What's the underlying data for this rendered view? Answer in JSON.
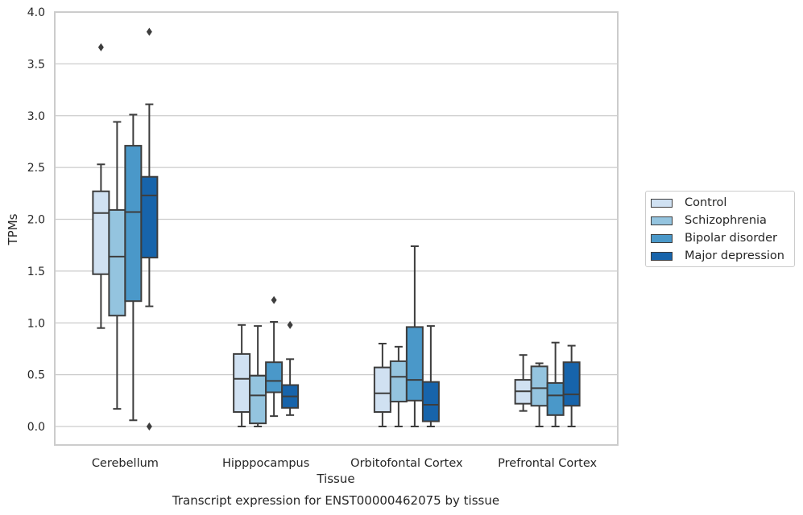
{
  "chart_data": {
    "type": "box",
    "title": "Transcript expression for ENST00000462075 by tissue",
    "xlabel": "Tissue",
    "ylabel": "TPMs",
    "ylim": [
      -0.18,
      4.0
    ],
    "yticks": [
      0.0,
      0.5,
      1.0,
      1.5,
      2.0,
      2.5,
      3.0,
      3.5,
      4.0
    ],
    "ytick_labels": [
      "0.0",
      "0.5",
      "1.0",
      "1.5",
      "2.0",
      "2.5",
      "3.0",
      "3.5",
      "4.0"
    ],
    "categories": [
      "Cerebellum",
      "Hipppocampus",
      "Orbitofontal Cortex",
      "Prefrontal Cortex"
    ],
    "grid": "horizontal",
    "legend_position": "outside right",
    "series": [
      {
        "name": "Control",
        "color": "#d0e1f2",
        "boxes": [
          {
            "whislo": 0.95,
            "q1": 1.47,
            "med": 2.06,
            "q3": 2.27,
            "whishi": 2.53,
            "fliers": [
              3.66
            ]
          },
          {
            "whislo": 0.0,
            "q1": 0.14,
            "med": 0.46,
            "q3": 0.7,
            "whishi": 0.98,
            "fliers": []
          },
          {
            "whislo": 0.0,
            "q1": 0.14,
            "med": 0.32,
            "q3": 0.57,
            "whishi": 0.8,
            "fliers": []
          },
          {
            "whislo": 0.15,
            "q1": 0.22,
            "med": 0.34,
            "q3": 0.45,
            "whishi": 0.69,
            "fliers": []
          }
        ]
      },
      {
        "name": "Schizophrenia",
        "color": "#94c4df",
        "boxes": [
          {
            "whislo": 0.17,
            "q1": 1.07,
            "med": 1.64,
            "q3": 2.09,
            "whishi": 2.94,
            "fliers": []
          },
          {
            "whislo": 0.0,
            "q1": 0.03,
            "med": 0.3,
            "q3": 0.49,
            "whishi": 0.97,
            "fliers": []
          },
          {
            "whislo": 0.0,
            "q1": 0.24,
            "med": 0.48,
            "q3": 0.63,
            "whishi": 0.77,
            "fliers": []
          },
          {
            "whislo": 0.0,
            "q1": 0.2,
            "med": 0.37,
            "q3": 0.58,
            "whishi": 0.61,
            "fliers": []
          }
        ]
      },
      {
        "name": "Bipolar disorder",
        "color": "#4a98c9",
        "boxes": [
          {
            "whislo": 0.06,
            "q1": 1.21,
            "med": 2.07,
            "q3": 2.71,
            "whishi": 3.01,
            "fliers": []
          },
          {
            "whislo": 0.1,
            "q1": 0.33,
            "med": 0.44,
            "q3": 0.62,
            "whishi": 1.01,
            "fliers": [
              1.22
            ]
          },
          {
            "whislo": 0.0,
            "q1": 0.25,
            "med": 0.45,
            "q3": 0.96,
            "whishi": 1.74,
            "fliers": []
          },
          {
            "whislo": 0.0,
            "q1": 0.11,
            "med": 0.3,
            "q3": 0.42,
            "whishi": 0.81,
            "fliers": []
          }
        ]
      },
      {
        "name": "Major depression",
        "color": "#1764ab",
        "boxes": [
          {
            "whislo": 1.16,
            "q1": 1.63,
            "med": 2.23,
            "q3": 2.41,
            "whishi": 3.11,
            "fliers": [
              3.81,
              0.0
            ]
          },
          {
            "whislo": 0.11,
            "q1": 0.18,
            "med": 0.29,
            "q3": 0.4,
            "whishi": 0.65,
            "fliers": [
              0.98
            ]
          },
          {
            "whislo": 0.0,
            "q1": 0.05,
            "med": 0.21,
            "q3": 0.43,
            "whishi": 0.97,
            "fliers": []
          },
          {
            "whislo": 0.0,
            "q1": 0.2,
            "med": 0.31,
            "q3": 0.62,
            "whishi": 0.78,
            "fliers": []
          }
        ]
      }
    ]
  }
}
